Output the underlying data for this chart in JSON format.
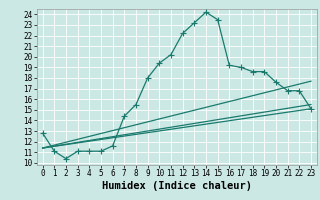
{
  "xlabel": "Humidex (Indice chaleur)",
  "bg_color": "#cce8e4",
  "grid_color": "#ffffff",
  "line_color": "#1a7a6e",
  "xlim": [
    -0.5,
    23.5
  ],
  "ylim": [
    9.8,
    24.5
  ],
  "yticks": [
    10,
    11,
    12,
    13,
    14,
    15,
    16,
    17,
    18,
    19,
    20,
    21,
    22,
    23,
    24
  ],
  "xticks": [
    0,
    1,
    2,
    3,
    4,
    5,
    6,
    7,
    8,
    9,
    10,
    11,
    12,
    13,
    14,
    15,
    16,
    17,
    18,
    19,
    20,
    21,
    22,
    23
  ],
  "line1_x": [
    0,
    1,
    2,
    3,
    4,
    5,
    6,
    7,
    8,
    9,
    10,
    11,
    12,
    13,
    14,
    15,
    16,
    17,
    18,
    19,
    20,
    21,
    22,
    23
  ],
  "line1_y": [
    12.8,
    11.1,
    10.4,
    11.1,
    11.1,
    11.1,
    11.6,
    14.4,
    15.5,
    18.0,
    19.4,
    20.2,
    22.2,
    23.2,
    24.2,
    23.5,
    19.2,
    19.0,
    18.6,
    18.6,
    17.6,
    16.8,
    16.8,
    15.1
  ],
  "line2_x": [
    0,
    23
  ],
  "line2_y": [
    11.4,
    15.1
  ],
  "line3_x": [
    0,
    23
  ],
  "line3_y": [
    11.4,
    17.7
  ],
  "line4_x": [
    0,
    23
  ],
  "line4_y": [
    11.4,
    15.5
  ],
  "tick_fontsize": 5.5,
  "xlabel_fontsize": 7.5
}
